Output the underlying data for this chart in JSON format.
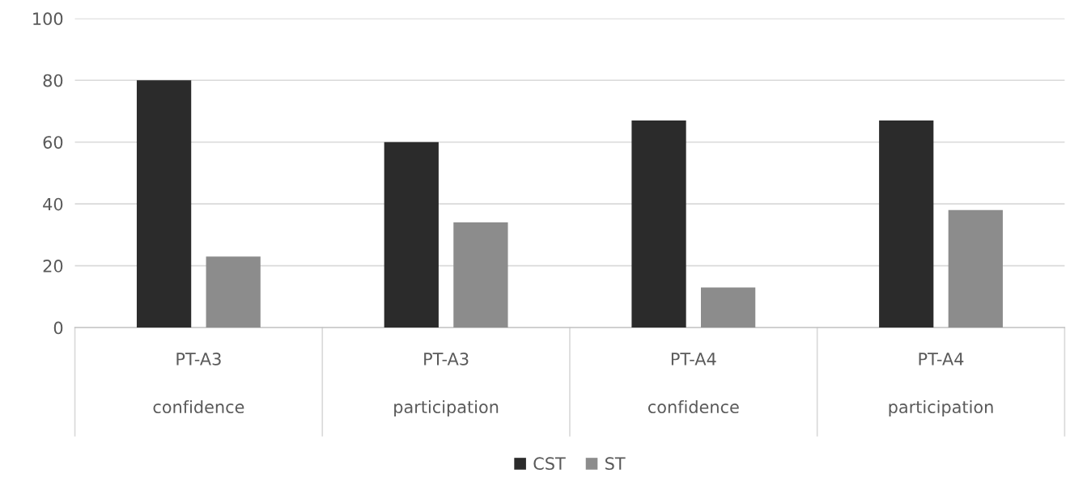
{
  "chart_data": {
    "type": "bar",
    "categories": [
      "PT-A3\n\nconfidence",
      "PT-A3\n\nparticipation",
      "PT-A4\n\nconfidence",
      "PT-A4\n\nparticipation"
    ],
    "series": [
      {
        "name": "CST",
        "color": "#2b2b2b",
        "values": [
          80,
          60,
          67,
          67
        ]
      },
      {
        "name": "ST",
        "color": "#8c8c8c",
        "values": [
          23,
          34,
          13,
          38
        ]
      }
    ],
    "ylim": [
      0,
      100
    ],
    "yticks": [
      0,
      20,
      40,
      60,
      80,
      100
    ],
    "grid": "y",
    "legend": "bottom"
  }
}
